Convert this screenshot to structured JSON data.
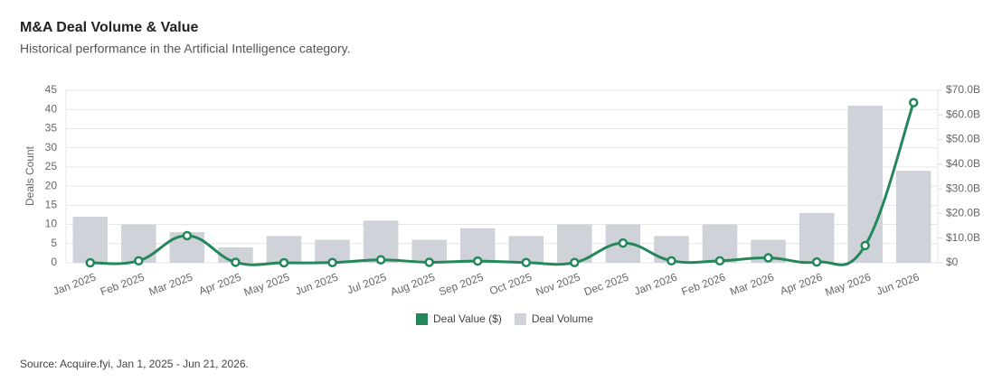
{
  "chart_data": {
    "type": "combo",
    "title": "M&A Deal Volume & Value",
    "subtitle": "Historical performance in the Artificial Intelligence category.",
    "source": "Source: Acquire.fyi, Jan 1, 2025 - Jun 21, 2026.",
    "ylabel": "Deals Count",
    "categories": [
      "Jan 2025",
      "Feb 2025",
      "Mar 2025",
      "Apr 2025",
      "May 2025",
      "Jun 2025",
      "Jul 2025",
      "Aug 2025",
      "Sep 2025",
      "Oct 2025",
      "Nov 2025",
      "Dec 2025",
      "Jan 2026",
      "Feb 2026",
      "Mar 2026",
      "Apr 2026",
      "May 2026",
      "Jun 2026"
    ],
    "series": [
      {
        "name": "Deal Value ($)",
        "type": "line",
        "axis": "y2",
        "color": "#23875a",
        "values": [
          0,
          0.8,
          11,
          0.2,
          0,
          0.1,
          1.2,
          0.2,
          0.7,
          0.1,
          0.1,
          8,
          0.8,
          0.8,
          2,
          0.3,
          7,
          65
        ]
      },
      {
        "name": "Deal Volume",
        "type": "bar",
        "axis": "y",
        "color": "#cfd3d9",
        "values": [
          12,
          10,
          8,
          4,
          7,
          6,
          11,
          6,
          9,
          7,
          10,
          10,
          7,
          10,
          6,
          13,
          41,
          24
        ]
      }
    ],
    "ylim": [
      0,
      45
    ],
    "yticks": [
      0,
      5,
      10,
      15,
      20,
      25,
      30,
      35,
      40,
      45
    ],
    "y2lim": [
      0,
      70
    ],
    "y2ticks": [
      {
        "value": 0,
        "label": "$0"
      },
      {
        "value": 10,
        "label": "$10.0B"
      },
      {
        "value": 20,
        "label": "$20.0B"
      },
      {
        "value": 30,
        "label": "$30.0B"
      },
      {
        "value": 40,
        "label": "$40.0B"
      },
      {
        "value": 50,
        "label": "$50.0B"
      },
      {
        "value": 60,
        "label": "$60.0B"
      },
      {
        "value": 70,
        "label": "$70.0B"
      }
    ],
    "grid": true
  }
}
